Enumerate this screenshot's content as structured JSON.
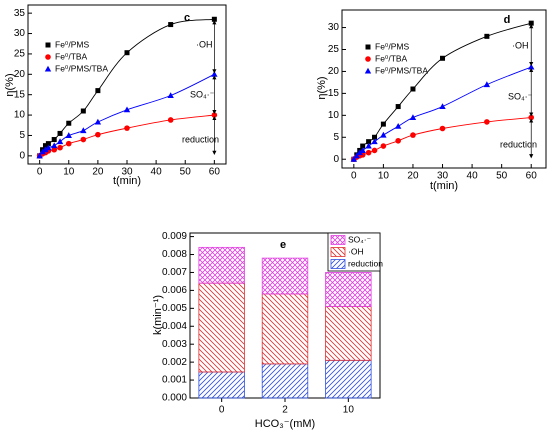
{
  "chart_data": [
    {
      "type": "line",
      "title": "c",
      "xlabel": "t(min)",
      "ylabel": "η(%)",
      "x": [
        0,
        1,
        2,
        3,
        5,
        7,
        10,
        15,
        20,
        30,
        45,
        60
      ],
      "series": [
        {
          "name": "Fe⁰/PMS",
          "color": "#000000",
          "marker": "square",
          "values": [
            0,
            1.5,
            2.5,
            3,
            4,
            5.5,
            8,
            11,
            16,
            25.3,
            32.2,
            33.5
          ]
        },
        {
          "name": "Fe⁰/TBA",
          "color": "#ff0000",
          "marker": "circle",
          "values": [
            0,
            0.5,
            0.8,
            1.2,
            1.5,
            2,
            3,
            4,
            5.2,
            6.8,
            8.8,
            10
          ]
        },
        {
          "name": "Fe⁰/PMS/TBA",
          "color": "#0000ff",
          "marker": "triangle",
          "values": [
            0,
            1,
            1.5,
            2,
            2.5,
            3.5,
            5,
            6.2,
            8.3,
            11.3,
            14.8,
            20
          ]
        }
      ],
      "annotations": [
        "·OH",
        "SO₄·⁻",
        "reduction"
      ],
      "xlim": [
        -4,
        64
      ],
      "xticks": [
        0,
        10,
        20,
        30,
        40,
        50,
        60
      ],
      "ylim": [
        -2,
        37
      ],
      "yticks": [
        0,
        5,
        10,
        15,
        20,
        25,
        30,
        35
      ],
      "legend": "upper left"
    },
    {
      "type": "line",
      "title": "d",
      "xlabel": "t(min)",
      "ylabel": "η(%)",
      "x": [
        0,
        1,
        2,
        3,
        5,
        7,
        10,
        15,
        20,
        30,
        45,
        60
      ],
      "series": [
        {
          "name": "Fe⁰/PMS",
          "color": "#000000",
          "marker": "square",
          "values": [
            0,
            1,
            2,
            3,
            4,
            5,
            8,
            12,
            16,
            23,
            28,
            31
          ]
        },
        {
          "name": "Fe⁰/TBA",
          "color": "#ff0000",
          "marker": "circle",
          "values": [
            0,
            0.5,
            0.8,
            1,
            1.5,
            2,
            3,
            4.2,
            5.5,
            7,
            8.5,
            9.5
          ]
        },
        {
          "name": "Fe⁰/PMS/TBA",
          "color": "#0000ff",
          "marker": "triangle",
          "values": [
            0,
            0.8,
            1.5,
            2,
            3,
            4,
            5.5,
            7.5,
            9.5,
            12,
            17,
            21
          ]
        }
      ],
      "annotations": [
        "·OH",
        "SO₄·⁻",
        "reduction"
      ],
      "xlim": [
        -4,
        65
      ],
      "xticks": [
        0,
        10,
        20,
        30,
        40,
        50,
        60
      ],
      "ylim": [
        -2,
        34
      ],
      "yticks": [
        0,
        5,
        10,
        15,
        20,
        25,
        30
      ],
      "legend": "upper left"
    },
    {
      "type": "bar",
      "stacked": true,
      "title": "e",
      "xlabel": "HCO₃⁻(mM)",
      "ylabel": "k(min⁻¹)",
      "categories": [
        "0",
        "2",
        "10"
      ],
      "series": [
        {
          "name": "reduction",
          "color": "#3050e0",
          "hatch": "/",
          "values": [
            0.00145,
            0.0019,
            0.0021
          ]
        },
        {
          "name": "·OH",
          "color": "#e03030",
          "hatch": "\\",
          "values": [
            0.00495,
            0.0039,
            0.003
          ]
        },
        {
          "name": "SO₄·⁻",
          "color": "#e040e0",
          "hatch": "x",
          "values": [
            0.002,
            0.002,
            0.0019
          ]
        }
      ],
      "ylim": [
        0,
        0.0092
      ],
      "yticks": [
        {
          "value": 0,
          "label": "0.000"
        },
        {
          "value": 0.001,
          "label": "0.001"
        },
        {
          "value": 0.002,
          "label": "0.002"
        },
        {
          "value": 0.003,
          "label": "0.003"
        },
        {
          "value": 0.004,
          "label": "0.004"
        },
        {
          "value": 0.005,
          "label": "0.005"
        },
        {
          "value": 0.006,
          "label": "0.006"
        },
        {
          "value": 0.007,
          "label": "0.007"
        },
        {
          "value": 0.008,
          "label": "0.008"
        },
        {
          "value": 0.009,
          "label": "0.009"
        }
      ],
      "legend": "upper right"
    }
  ]
}
